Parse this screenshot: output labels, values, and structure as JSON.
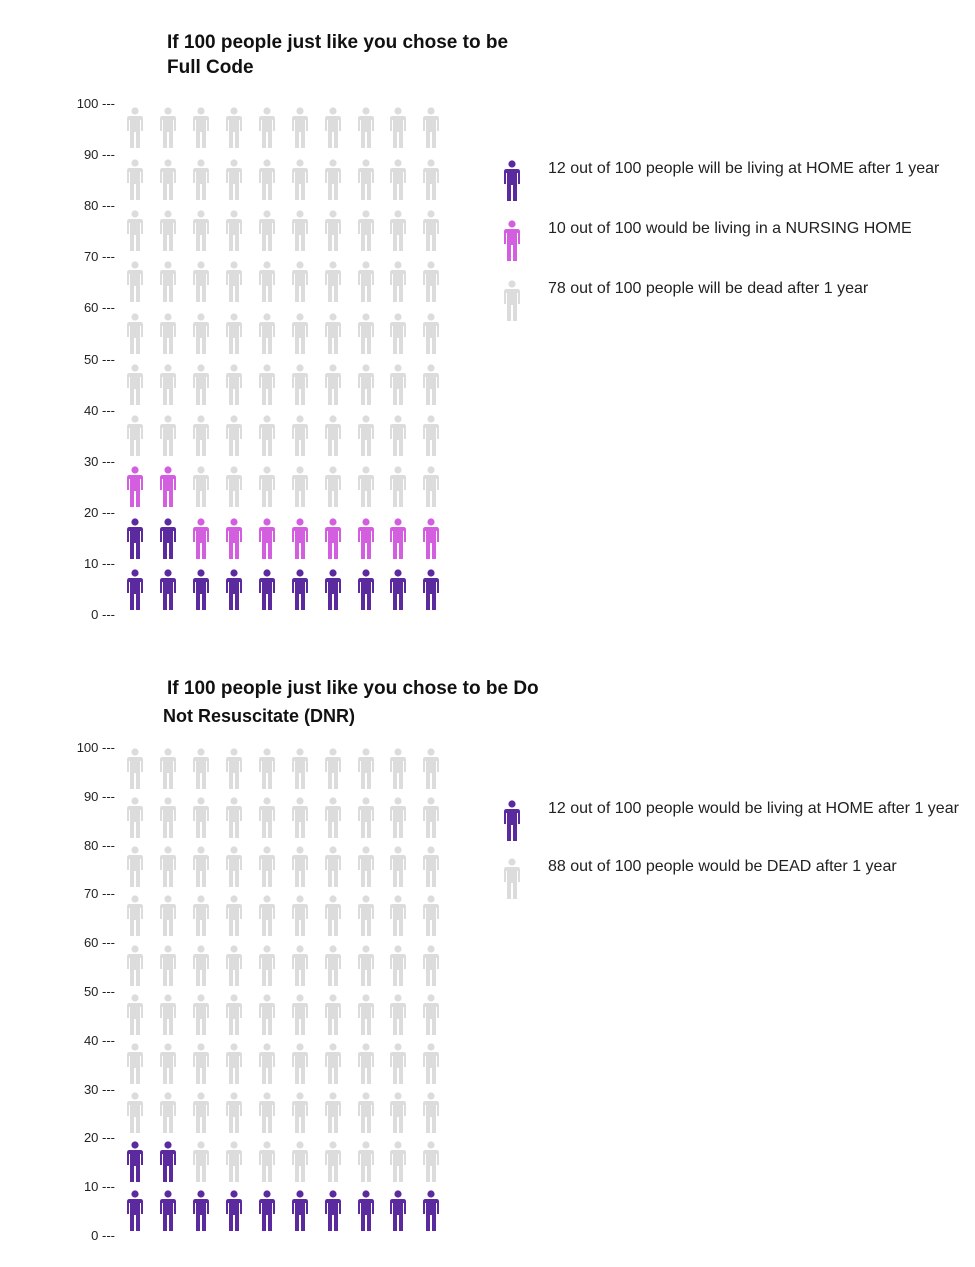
{
  "colors": {
    "home": "#5b2a9e",
    "nursing": "#d45ee0",
    "dead": "#dcdcdc"
  },
  "chart_data": [
    {
      "type": "icon-array",
      "title_line1": "If 100 people just like you chose to be",
      "title_line2": "Full Code",
      "yticks": [
        "100 ---",
        "90 ---",
        "80 ---",
        "70 ---",
        "60 ---",
        "50 ---",
        "40 ---",
        "30 ---",
        "20 ---",
        "10 ---",
        "0 ---"
      ],
      "series": [
        {
          "key": "home",
          "value": 12,
          "label": "12 out of 100 people will be living at HOME after 1 year"
        },
        {
          "key": "nursing",
          "value": 10,
          "label": "10 out of 100 would be living in a NURSING HOME"
        },
        {
          "key": "dead",
          "value": 78,
          "label": "78 out of 100 people will be dead after 1 year"
        }
      ]
    },
    {
      "type": "icon-array",
      "title_line1": "If 100 people just like you chose to be Do",
      "title_line2": "Not Resuscitate (DNR)",
      "yticks": [
        "100 ---",
        "90 ---",
        "80 ---",
        "70 ---",
        "60 ---",
        "50 ---",
        "40 ---",
        "30 ---",
        "20 ---",
        "10 ---",
        "0 ---"
      ],
      "series": [
        {
          "key": "home",
          "value": 12,
          "label": "12 out of 100 people would be living at HOME after 1 year"
        },
        {
          "key": "dead",
          "value": 88,
          "label": "88 out of 100 people would be DEAD after 1 year"
        }
      ]
    }
  ]
}
